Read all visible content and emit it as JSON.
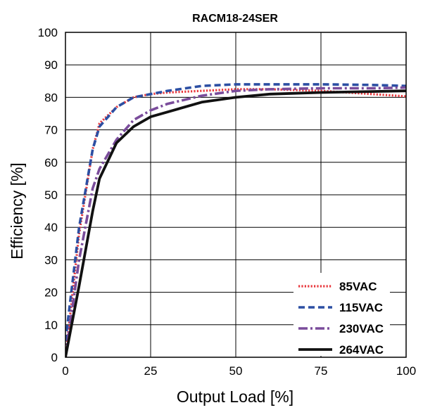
{
  "chart_data": {
    "type": "line",
    "title": "RACM18-24SER",
    "xlabel": "Output Load [%]",
    "ylabel": "Efficiency [%]",
    "xlim": [
      0,
      100
    ],
    "ylim": [
      0,
      100
    ],
    "xticks": [
      0,
      25,
      50,
      75,
      100
    ],
    "yticks": [
      0,
      10,
      20,
      30,
      40,
      50,
      60,
      70,
      80,
      90,
      100
    ],
    "grid": true,
    "legend_position": "bottom-right",
    "series": [
      {
        "name": "85VAC",
        "color": "#e8383d",
        "dash": "dotted",
        "points": [
          [
            0,
            0
          ],
          [
            4,
            38
          ],
          [
            8,
            64
          ],
          [
            10,
            72
          ],
          [
            15,
            77
          ],
          [
            20,
            80
          ],
          [
            25,
            81
          ],
          [
            30,
            81.5
          ],
          [
            40,
            82
          ],
          [
            50,
            82.5
          ],
          [
            60,
            82.5
          ],
          [
            75,
            82
          ],
          [
            90,
            81
          ],
          [
            100,
            80.3
          ]
        ]
      },
      {
        "name": "115VAC",
        "color": "#2c4fa3",
        "dash": "dashed",
        "points": [
          [
            0,
            5
          ],
          [
            4,
            40
          ],
          [
            8,
            64
          ],
          [
            10,
            71
          ],
          [
            15,
            77
          ],
          [
            20,
            80
          ],
          [
            25,
            81
          ],
          [
            30,
            82
          ],
          [
            40,
            83.5
          ],
          [
            50,
            84
          ],
          [
            60,
            84
          ],
          [
            75,
            84
          ],
          [
            90,
            83.8
          ],
          [
            100,
            83.5
          ]
        ]
      },
      {
        "name": "230VAC",
        "color": "#7a4c9b",
        "dash": "dashdot",
        "points": [
          [
            0,
            0
          ],
          [
            4,
            30
          ],
          [
            8,
            52
          ],
          [
            10,
            58
          ],
          [
            15,
            67
          ],
          [
            20,
            73
          ],
          [
            25,
            76
          ],
          [
            30,
            78
          ],
          [
            40,
            80.5
          ],
          [
            50,
            82
          ],
          [
            60,
            82.5
          ],
          [
            75,
            82.8
          ],
          [
            90,
            82.8
          ],
          [
            100,
            83
          ]
        ]
      },
      {
        "name": "264VAC",
        "color": "#111111",
        "dash": "solid",
        "points": [
          [
            0,
            0
          ],
          [
            4,
            22
          ],
          [
            8,
            45
          ],
          [
            10,
            55
          ],
          [
            15,
            66
          ],
          [
            20,
            71
          ],
          [
            25,
            74
          ],
          [
            30,
            75.5
          ],
          [
            40,
            78.5
          ],
          [
            50,
            80
          ],
          [
            60,
            81
          ],
          [
            75,
            81.5
          ],
          [
            90,
            81.8
          ],
          [
            100,
            82
          ]
        ]
      }
    ]
  }
}
